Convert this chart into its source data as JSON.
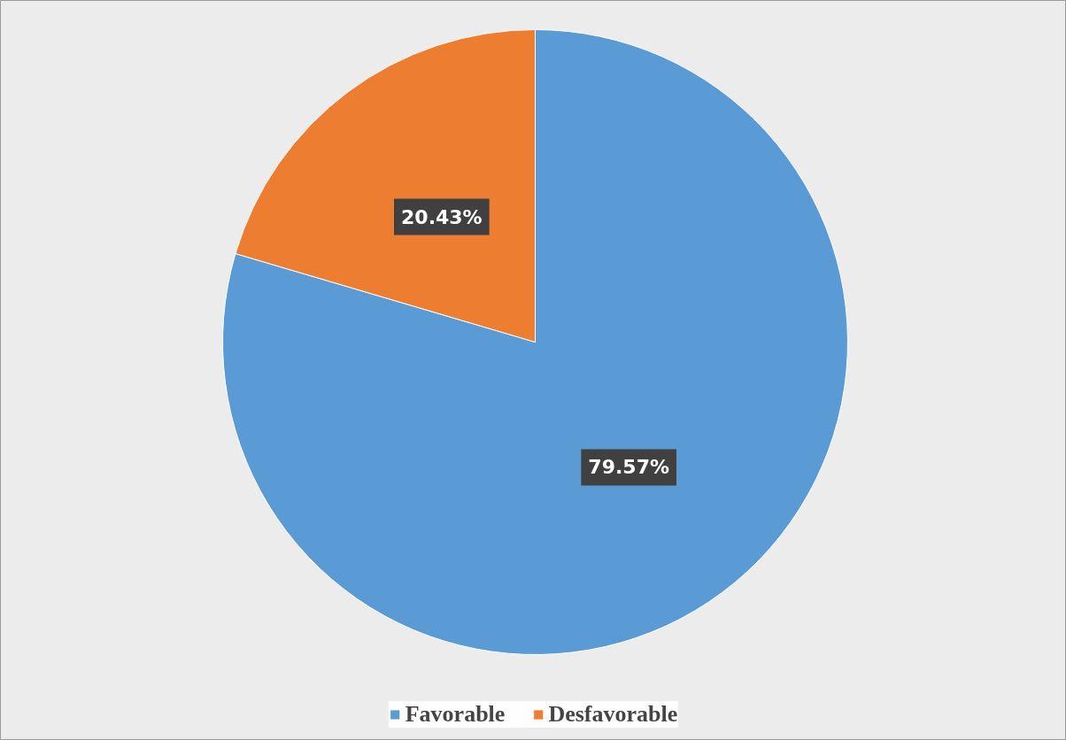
{
  "chart_data": {
    "type": "pie",
    "categories": [
      "Favorable",
      "Desfavorable"
    ],
    "values": [
      79.57,
      20.43
    ],
    "colors": [
      "#5b9bd5",
      "#ed7d31"
    ],
    "value_labels": [
      "79.57%",
      "20.43%"
    ],
    "legend": "bottom"
  }
}
